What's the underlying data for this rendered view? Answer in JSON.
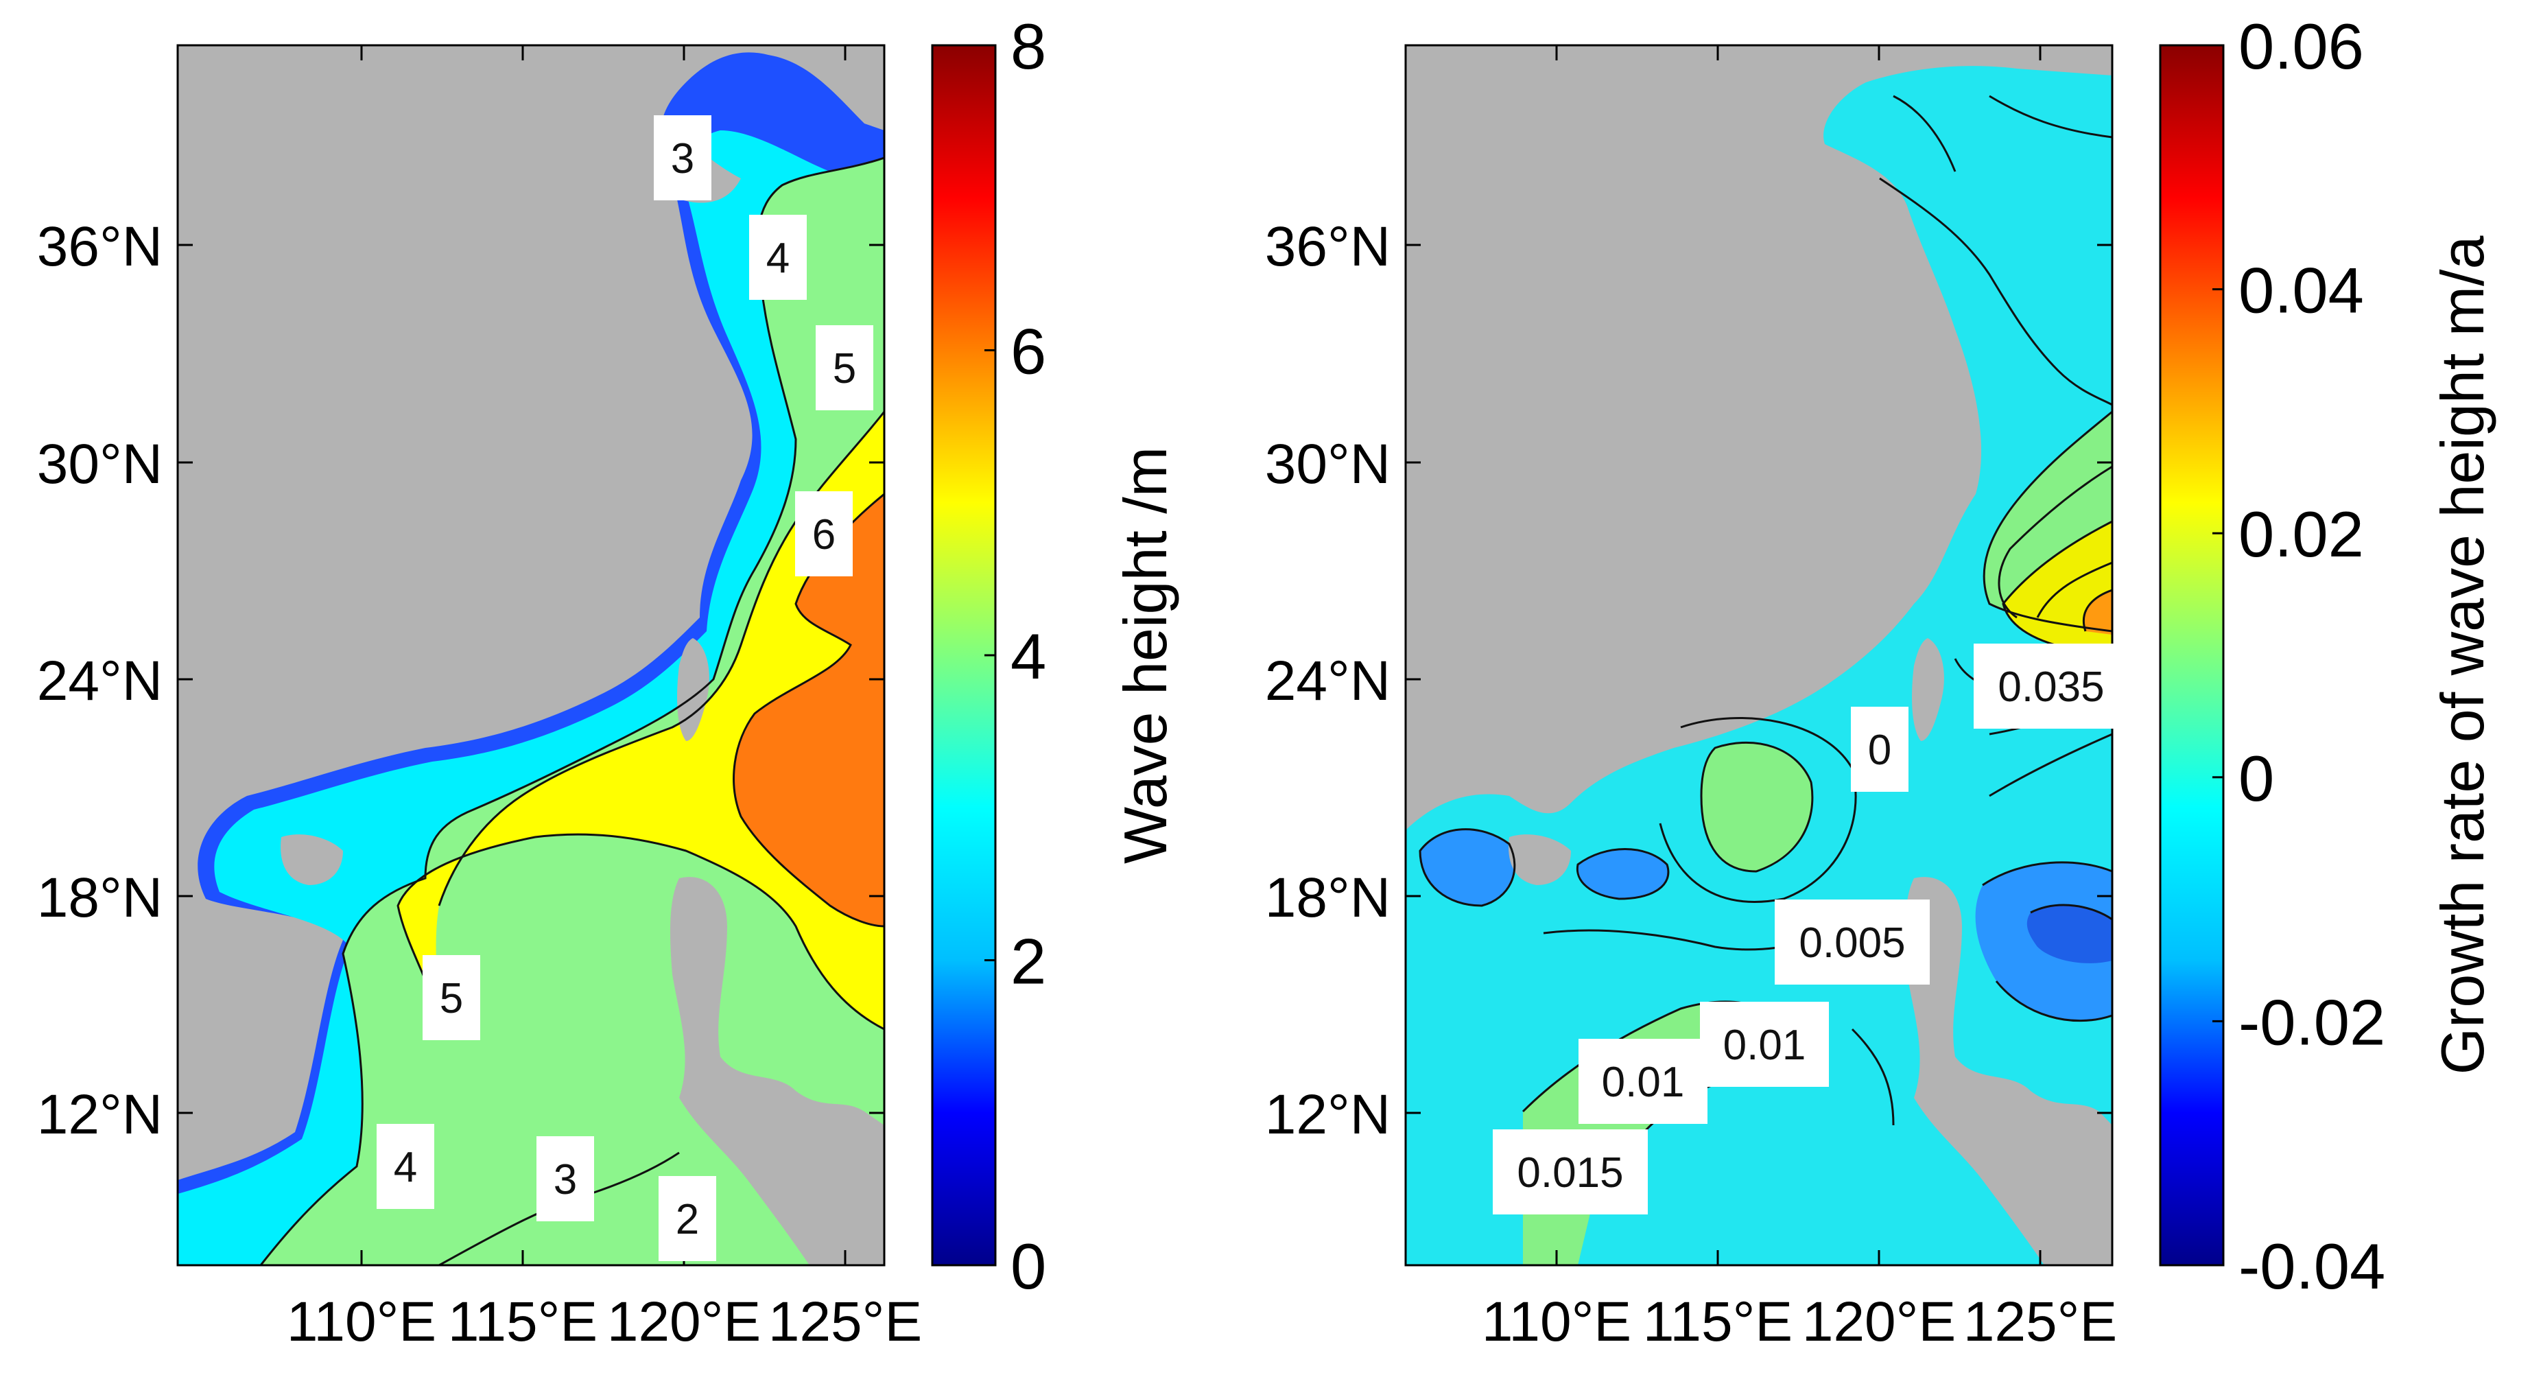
{
  "panels": [
    {
      "id": "left",
      "lat_ticks": [
        "36°N",
        "30°N",
        "24°N",
        "18°N",
        "12°N"
      ],
      "lon_ticks": [
        "110°E",
        "115°E",
        "120°E",
        "125°E"
      ],
      "contour_labels": [
        "3",
        "4",
        "5",
        "6",
        "5",
        "4",
        "3",
        "2"
      ],
      "colorbar": {
        "label": "Wave height /m",
        "ticks": [
          "8",
          "6",
          "4",
          "2",
          "0"
        ],
        "range": [
          0,
          8
        ],
        "colors": [
          "#00008b",
          "#0000ff",
          "#00bfff",
          "#00ffff",
          "#7fff7f",
          "#ffff00",
          "#ff8000",
          "#ff0000",
          "#8b0000"
        ]
      }
    },
    {
      "id": "right",
      "lat_ticks": [
        "36°N",
        "30°N",
        "24°N",
        "18°N",
        "12°N"
      ],
      "lon_ticks": [
        "110°E",
        "115°E",
        "120°E",
        "125°E"
      ],
      "contour_labels": [
        "0.035",
        "0",
        "0.005",
        "0.01",
        "0.01",
        "0.015"
      ],
      "colorbar": {
        "label": "Growth rate of wave height m/a",
        "ticks": [
          "0.06",
          "0.04",
          "0.02",
          "0",
          "-0.02",
          "-0.04"
        ],
        "range": [
          -0.04,
          0.06
        ],
        "colors": [
          "#00008b",
          "#0000ff",
          "#00bfff",
          "#00ffff",
          "#7fff7f",
          "#ffff00",
          "#ff8000",
          "#ff0000",
          "#8b0000"
        ]
      }
    }
  ],
  "land_color": "#b3b3b3"
}
